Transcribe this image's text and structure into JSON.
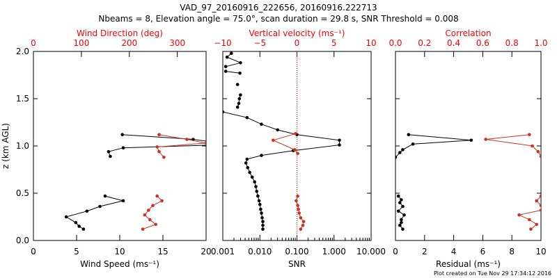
{
  "colors": {
    "primary": "#000000",
    "secondary": "#d03020",
    "secondary_axis": "#ff0000"
  },
  "title_line1": "VAD_97_20160916_222656, 20160916.222713",
  "title_line2": "Nbeams = 8, Elevation angle = 75.0°, scan duration = 29.8 s, SNR Threshold = 0.008",
  "footer": "Plot created on Tue Nov 29 17:34:12 2016",
  "ylabel": "z (km AGL)",
  "chart_data": [
    {
      "type": "line",
      "xlabel": "Wind Speed (ms⁻¹)",
      "xlim": [
        0,
        20
      ],
      "x_ticks": [
        "0",
        "5",
        "10",
        "15",
        "20"
      ],
      "top_xlabel": "Wind Direction (deg)",
      "top_xlim": [
        0,
        360
      ],
      "top_x_ticks": [
        "0",
        "100",
        "200",
        "300"
      ],
      "ylim": [
        0,
        2
      ],
      "y_ticks": [
        "0.0",
        "0.5",
        "1.0",
        "1.5",
        "2.0"
      ],
      "series": [
        {
          "axis": "bottom",
          "segments": [
            [
              [
                5.8,
                0.12
              ],
              [
                5.3,
                0.15
              ],
              [
                4.9,
                0.19
              ],
              [
                3.8,
                0.25
              ],
              [
                6.2,
                0.31
              ],
              [
                7.7,
                0.36
              ],
              [
                10.4,
                0.42
              ],
              [
                8.3,
                0.47
              ]
            ],
            [
              [
                8.9,
                0.89
              ],
              [
                8.7,
                0.94
              ],
              [
                10.4,
                0.98
              ],
              [
                21,
                1.01
              ],
              [
                21,
                1.04
              ],
              [
                18.5,
                1.07
              ],
              [
                10.3,
                1.12
              ]
            ]
          ]
        },
        {
          "axis": "top",
          "segments": [
            [
              [
                228,
                0.12
              ],
              [
                255,
                0.17
              ],
              [
                243,
                0.22
              ],
              [
                232,
                0.27
              ],
              [
                240,
                0.32
              ],
              [
                249,
                0.37
              ],
              [
                268,
                0.42
              ],
              [
                258,
                0.47
              ]
            ],
            [
              [
                272,
                0.88
              ],
              [
                262,
                0.94
              ],
              [
                258,
                0.99
              ],
              [
                360,
                1.03
              ],
              [
                320,
                1.07
              ],
              [
                262,
                1.12
              ]
            ]
          ]
        }
      ]
    },
    {
      "type": "line",
      "xlabel": "SNR",
      "x_scale": "log",
      "xlim": [
        0.001,
        10
      ],
      "x_ticks": [
        "0.001",
        "0.010",
        "0.100",
        "1.000",
        "10.000"
      ],
      "top_xlabel": "Vertical velocity (ms⁻¹)",
      "top_xlim": [
        -10,
        10
      ],
      "top_x_ticks": [
        "−10",
        "−5",
        "0",
        "5",
        "10"
      ],
      "top_reference_x": 0,
      "ylim": [
        0,
        2
      ],
      "series": [
        {
          "axis": "bottom",
          "segments": [
            [
              [
                0.012,
                0.12
              ],
              [
                0.012,
                0.16
              ],
              [
                0.012,
                0.2
              ],
              [
                0.0115,
                0.24
              ],
              [
                0.011,
                0.29
              ],
              [
                0.0105,
                0.33
              ],
              [
                0.01,
                0.38
              ],
              [
                0.0095,
                0.42
              ],
              [
                0.0088,
                0.47
              ],
              [
                0.0082,
                0.52
              ],
              [
                0.0078,
                0.57
              ],
              [
                0.0072,
                0.62
              ],
              [
                0.0062,
                0.67
              ],
              [
                0.0053,
                0.72
              ],
              [
                0.0047,
                0.77
              ],
              [
                0.0042,
                0.82
              ],
              [
                0.0045,
                0.86
              ],
              [
                0.011,
                0.9
              ],
              [
                0.08,
                0.95
              ],
              [
                1.4,
                1.01
              ],
              [
                1.4,
                1.06
              ],
              [
                0.1,
                1.12
              ],
              [
                0.03,
                1.17
              ],
              [
                0.011,
                1.23
              ],
              [
                0.0045,
                1.3
              ],
              [
                0.001,
                1.36
              ]
            ],
            [
              [
                0.0025,
                1.41
              ],
              [
                0.0027,
                1.45
              ],
              [
                0.0028,
                1.5
              ],
              [
                0.003,
                1.54
              ]
            ],
            [
              [
                0.0025,
                1.65
              ]
            ],
            [
              [
                0.0029,
                1.77
              ],
              [
                0.0012,
                1.79
              ]
            ],
            [
              [
                0.0012,
                1.84
              ],
              [
                0.003,
                1.88
              ],
              [
                0.0013,
                1.94
              ],
              [
                0.0017,
                1.98
              ]
            ]
          ]
        },
        {
          "axis": "top",
          "segments": [
            [
              [
                0.5,
                0.12
              ],
              [
                0.8,
                0.16
              ],
              [
                0.9,
                0.2
              ],
              [
                0.5,
                0.24
              ],
              [
                0.3,
                0.29
              ],
              [
                0.2,
                0.33
              ],
              [
                0.1,
                0.37
              ],
              [
                -0.1,
                0.42
              ],
              [
                0.1,
                0.47
              ]
            ],
            [
              [
                0.1,
                0.92
              ],
              [
                -0.3,
                0.96
              ],
              [
                -3.2,
                1.06
              ],
              [
                -0.2,
                1.13
              ]
            ]
          ]
        }
      ]
    },
    {
      "type": "line",
      "xlabel": "Residual (ms⁻¹)",
      "xlim": [
        0,
        10
      ],
      "x_ticks": [
        "0",
        "2",
        "4",
        "6",
        "8",
        "10"
      ],
      "top_xlabel": "Correlation",
      "top_xlim": [
        0,
        1
      ],
      "top_x_ticks": [
        "0.0",
        "0.2",
        "0.4",
        "0.6",
        "0.8",
        "1.0"
      ],
      "ylim": [
        0,
        2
      ],
      "series": [
        {
          "axis": "bottom",
          "segments": [
            [
              [
                0.5,
                0.12
              ],
              [
                0.3,
                0.16
              ],
              [
                0.4,
                0.19
              ],
              [
                0.4,
                0.22
              ],
              [
                0.6,
                0.27
              ],
              [
                0.2,
                0.31
              ],
              [
                0.5,
                0.36
              ],
              [
                0.3,
                0.4
              ],
              [
                0.4,
                0.43
              ],
              [
                0.2,
                0.47
              ]
            ],
            [
              [
                0,
                0.88
              ],
              [
                0.3,
                0.93
              ],
              [
                0.5,
                0.96
              ],
              [
                1.2,
                1.02
              ],
              [
                5.2,
                1.06
              ],
              [
                0.9,
                1.12
              ]
            ]
          ]
        },
        {
          "axis": "top",
          "segments": [
            [
              [
                0.93,
                0.12
              ],
              [
                0.97,
                0.17
              ],
              [
                0.92,
                0.22
              ],
              [
                0.85,
                0.27
              ],
              [
                1.0,
                0.32
              ],
              [
                1.0,
                0.37
              ],
              [
                0.97,
                0.42
              ],
              [
                1.0,
                0.47
              ]
            ],
            [
              [
                1.0,
                0.89
              ],
              [
                0.98,
                0.94
              ],
              [
                0.94,
                1.0
              ],
              [
                0.62,
                1.07
              ],
              [
                0.92,
                1.12
              ]
            ]
          ]
        }
      ]
    }
  ]
}
